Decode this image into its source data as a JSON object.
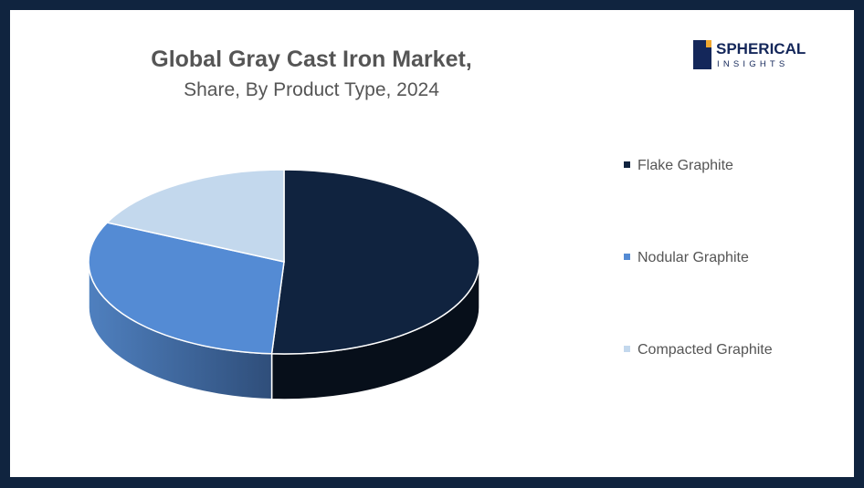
{
  "title": "Global Gray Cast Iron Market,",
  "subtitle": "Share, By Product Type, 2024",
  "logo": {
    "line1": "SPHERICAL",
    "line2": "INSIGHTS"
  },
  "chart_data": {
    "type": "pie",
    "style": "3d",
    "title": "Global Gray Cast Iron Market, Share, By Product Type, 2024",
    "categories": [
      "Flake Graphite",
      "Nodular Graphite",
      "Compacted Graphite"
    ],
    "values": [
      51,
      31,
      18
    ],
    "unit": "%",
    "colors": [
      "#10233f",
      "#548bd4",
      "#c3d8ed"
    ],
    "side_colors": [
      "#070f1a",
      "#3a64a0",
      "#9fb8d4"
    ],
    "legend_position": "right"
  }
}
